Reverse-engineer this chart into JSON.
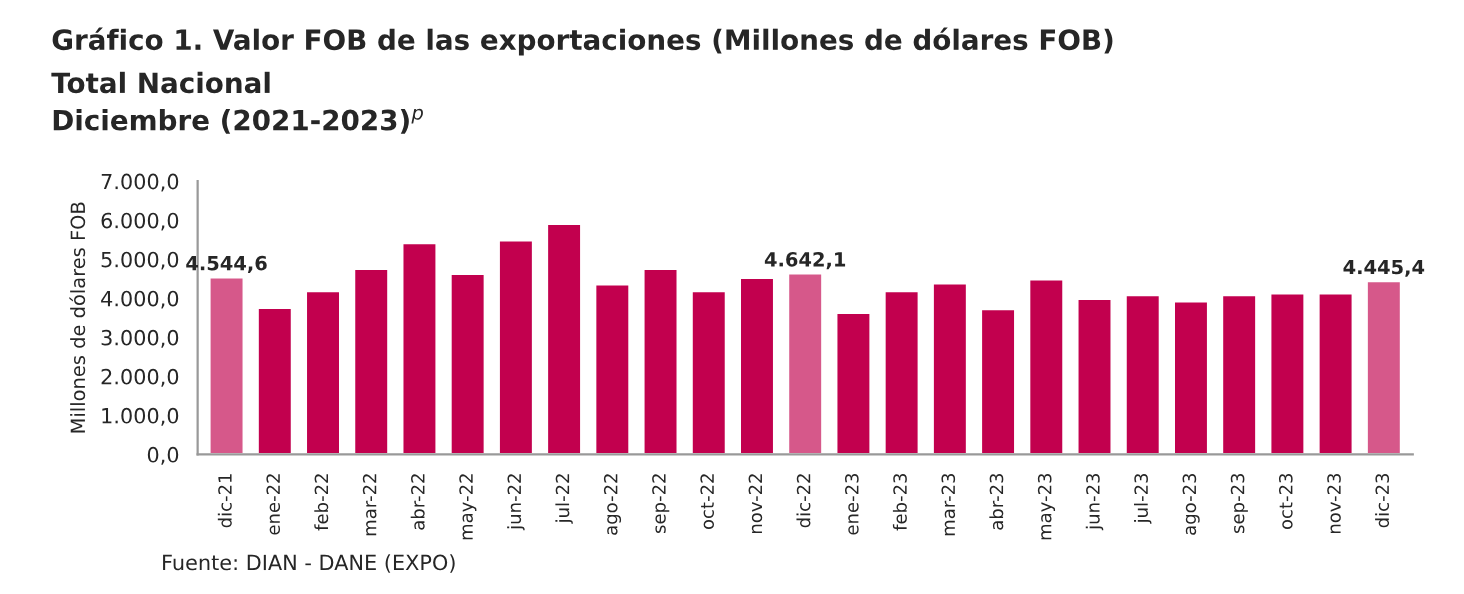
{
  "chart_data": {
    "type": "bar",
    "title": "Gráfico 1. Valor FOB de las exportaciones (Millones de dólares FOB)",
    "subtitle": "Total Nacional\nDiciembre (2021-2023)$^{p}$",
    "ylabel": "Millones de dólares FOB",
    "categories": [
      "dic-21",
      "ene-22",
      "feb-22",
      "mar-22",
      "abr-22",
      "may-22",
      "jun-22",
      "jul-22",
      "ago-22",
      "sep-22",
      "oct-22",
      "nov-22",
      "dic-22",
      "ene-23",
      "feb-23",
      "mar-23",
      "abr-23",
      "may-23",
      "jun-23",
      "jul-23",
      "ago-23",
      "sep-23",
      "oct-23",
      "nov-23",
      "dic-23"
    ],
    "values": [
      4544.6,
      3760,
      4190,
      4760,
      5420,
      4630,
      5490,
      5910,
      4360,
      4760,
      4190,
      4530,
      4642.1,
      3630,
      4190,
      4390,
      3730,
      4490,
      3990,
      4090,
      3930,
      4090,
      4130,
      4130,
      4445.4
    ],
    "colors": [
      "#d6588a",
      "#c2004e",
      "#c2004e",
      "#c2004e",
      "#c2004e",
      "#c2004e",
      "#c2004e",
      "#c2004e",
      "#c2004e",
      "#c2004e",
      "#c2004e",
      "#c2004e",
      "#d6588a",
      "#c2004e",
      "#c2004e",
      "#c2004e",
      "#c2004e",
      "#c2004e",
      "#c2004e",
      "#c2004e",
      "#c2004e",
      "#c2004e",
      "#c2004e",
      "#c2004e",
      "#d6588a"
    ],
    "value_labels": [
      "4.544,6",
      null,
      null,
      null,
      null,
      null,
      null,
      null,
      null,
      null,
      null,
      null,
      "4.642,1",
      null,
      null,
      null,
      null,
      null,
      null,
      null,
      null,
      null,
      null,
      null,
      "4.445,4"
    ],
    "ylim": [
      0,
      7000
    ],
    "yticks": [
      {
        "value": 0,
        "label": "0,0"
      },
      {
        "value": 1000,
        "label": "1.000,0"
      },
      {
        "value": 2000,
        "label": "2.000,0"
      },
      {
        "value": 3000,
        "label": "3.000,0"
      },
      {
        "value": 4000,
        "label": "4.000,0"
      },
      {
        "value": 5000,
        "label": "5.000,0"
      },
      {
        "value": 6000,
        "label": "6.000,0"
      },
      {
        "value": 7000,
        "label": "7.000,0"
      }
    ],
    "grid": false,
    "legend": false,
    "annotations": [
      "Fuente: DIAN - DANE (EXPO)"
    ]
  }
}
